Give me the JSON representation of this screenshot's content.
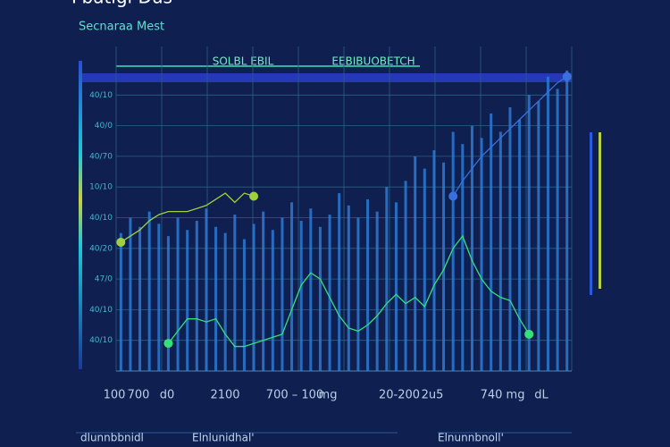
{
  "chart_data": {
    "type": "bar",
    "title": "Fbatigi Dus",
    "subtitle": "Secnaraa Mest",
    "headers": [
      "SOLBL EBIL",
      "EEBIBUOBETCH"
    ],
    "x_labels": [
      "100",
      "700",
      "d0",
      "2100",
      "700 – 100",
      "mg",
      "20-200",
      "2u5",
      "740",
      "mg",
      "dL"
    ],
    "footer_labels": [
      "dlunnbbnidl",
      "Elnlunidhal'",
      "Elnunnbnoll'"
    ],
    "ylim": [
      0,
      100
    ],
    "yticks": [
      {
        "value": 90,
        "label": "40/10"
      },
      {
        "value": 80,
        "label": "40/0"
      },
      {
        "value": 70,
        "label": "40/70"
      },
      {
        "value": 60,
        "label": "10/10"
      },
      {
        "value": 50,
        "label": "40/10"
      },
      {
        "value": 40,
        "label": "40/20"
      },
      {
        "value": 30,
        "label": "47/0"
      },
      {
        "value": 20,
        "label": "40/10"
      },
      {
        "value": 10,
        "label": "40/10"
      }
    ],
    "grid": true,
    "values": [
      45,
      50,
      47,
      52,
      48,
      44,
      50,
      46,
      49,
      53,
      47,
      45,
      51,
      43,
      48,
      52,
      46,
      50,
      55,
      49,
      53,
      47,
      51,
      58,
      54,
      50,
      56,
      52,
      60,
      55,
      62,
      70,
      66,
      72,
      68,
      78,
      74,
      80,
      76,
      84,
      78,
      86,
      82,
      90,
      88,
      96,
      92,
      98
    ],
    "color": "#2a7bd6",
    "series": [
      {
        "color": "#9fd23a",
        "values": [
          42,
          44,
          46,
          49,
          51,
          52,
          52,
          52,
          53,
          54,
          56,
          58,
          55,
          58,
          57,
          null,
          null,
          null,
          null,
          null,
          null,
          null,
          null,
          null,
          null,
          null,
          null,
          null,
          null,
          null,
          null,
          null,
          null,
          null,
          null,
          null,
          null,
          null,
          null,
          null,
          null,
          null,
          null,
          null,
          null,
          null,
          null,
          null
        ]
      },
      {
        "color": "#35e07a",
        "values": [
          null,
          null,
          null,
          null,
          null,
          9,
          13,
          17,
          17,
          16,
          17,
          12,
          8,
          8,
          9,
          10,
          11,
          12,
          20,
          28,
          32,
          30,
          24,
          18,
          14,
          13,
          15,
          18,
          22,
          25,
          22,
          24,
          21,
          28,
          33,
          40,
          44,
          36,
          30,
          26,
          24,
          23,
          17,
          12,
          null,
          null,
          null,
          null
        ]
      },
      {
        "color": "#3a6fe0",
        "values": [
          null,
          null,
          null,
          null,
          null,
          null,
          null,
          null,
          null,
          null,
          null,
          null,
          null,
          null,
          null,
          null,
          null,
          null,
          null,
          null,
          null,
          null,
          null,
          null,
          null,
          null,
          null,
          null,
          null,
          null,
          null,
          null,
          null,
          null,
          null,
          57,
          62,
          66,
          70,
          73,
          76,
          79,
          82,
          85,
          88,
          91,
          94,
          96
        ]
      }
    ]
  }
}
